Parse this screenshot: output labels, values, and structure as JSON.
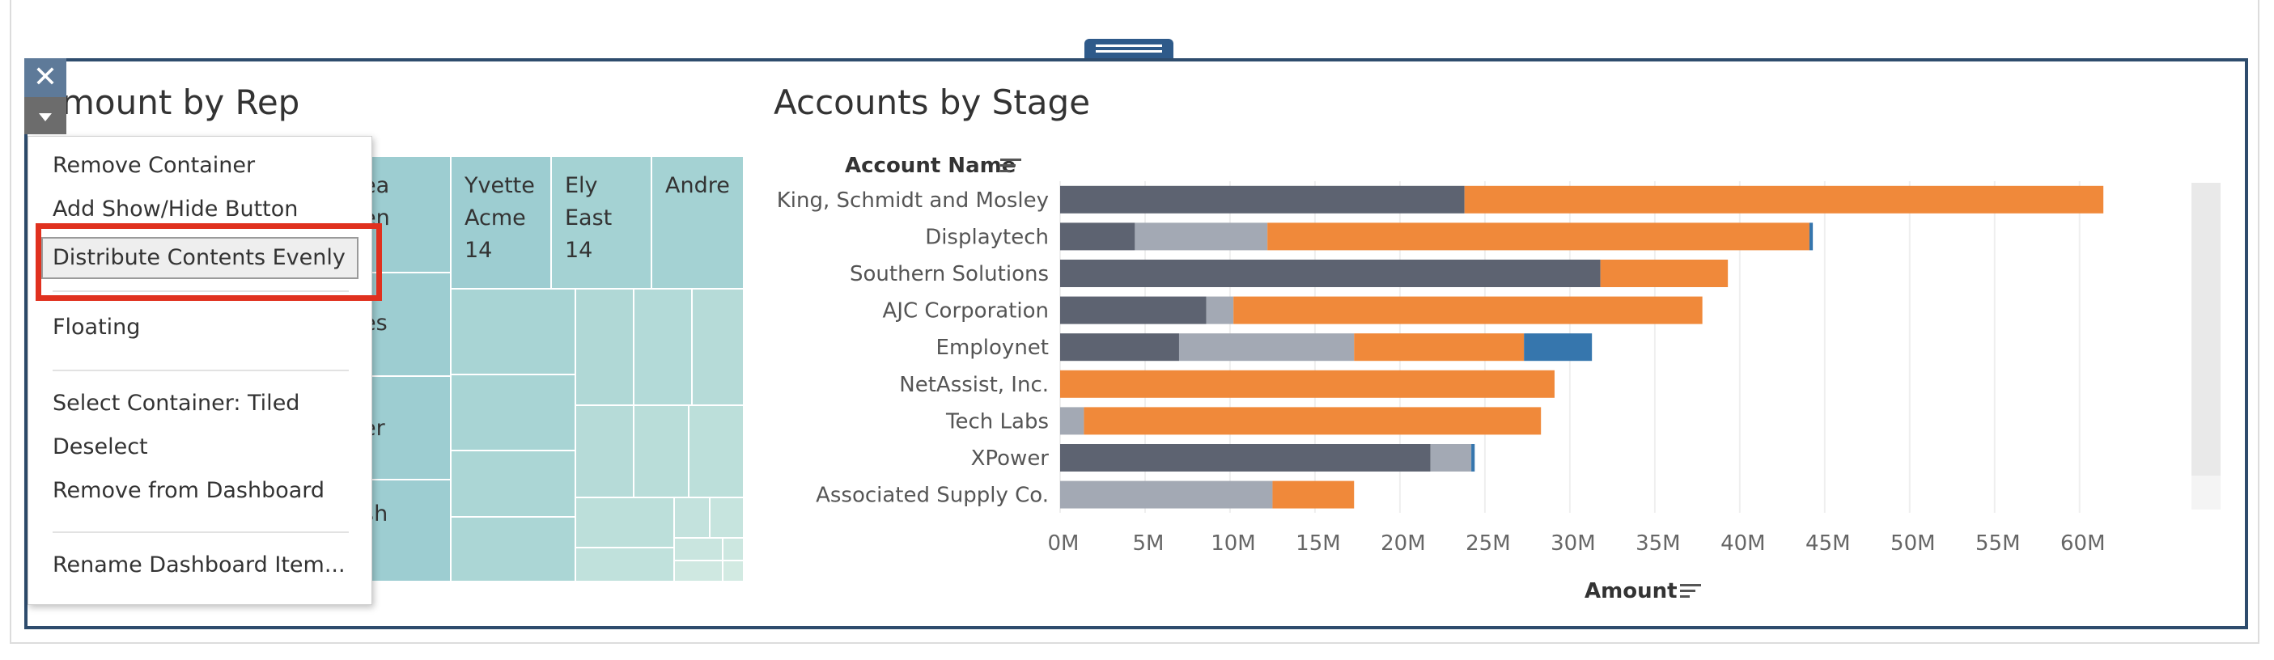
{
  "treemap": {
    "title": "mount by Rep",
    "cells": [
      {
        "label": "ea\nen",
        "color": "#9dcdd1"
      },
      {
        "label": "Yvette\nAcme\n14",
        "color": "#9dcdd1"
      },
      {
        "label": "Ely\nEast\n14",
        "color": "#a4d2d3"
      },
      {
        "label": "Andre",
        "color": "#a4d2d3"
      },
      {
        "label": "es",
        "color": "#9dcdd1"
      },
      {
        "label": "er",
        "color": "#9dcdd1"
      },
      {
        "label": "sh",
        "color": "#9dcdd1"
      }
    ]
  },
  "context_menu": {
    "items": [
      {
        "label": "Remove Container",
        "type": "item"
      },
      {
        "label": "Add Show/Hide Button",
        "type": "item"
      },
      {
        "label": "Distribute Contents Evenly",
        "type": "highlighted"
      },
      {
        "label": "Floating",
        "type": "item"
      },
      {
        "label": "Select Container: Tiled",
        "type": "item"
      },
      {
        "label": "Deselect",
        "type": "item"
      },
      {
        "label": "Remove from Dashboard",
        "type": "item"
      },
      {
        "label": "Rename Dashboard Item...",
        "type": "item"
      }
    ],
    "highlight_color": "#e0311f"
  },
  "buttons": {
    "close_glyph": "✕",
    "close_icon": "close-icon",
    "menu_icon": "caret-down-icon"
  },
  "chart_data": {
    "type": "bar",
    "stacked": true,
    "orientation": "horizontal",
    "title": "Accounts by Stage",
    "ylabel": "Account Name",
    "xlabel": "Amount",
    "categories": [
      "King, Schmidt and Mosley",
      "Displaytech",
      "Southern Solutions",
      "AJC Corporation",
      "Employnet",
      "NetAssist, Inc.",
      "Tech Labs",
      "XPower",
      "Associated Supply Co."
    ],
    "series": [
      {
        "color": "#5d6371",
        "values": [
          23.8,
          4.4,
          31.8,
          8.6,
          7.0,
          0,
          0,
          21.8,
          0
        ]
      },
      {
        "color": "#a3a9b4",
        "values": [
          0,
          7.8,
          0,
          1.6,
          10.3,
          0,
          1.4,
          2.4,
          12.5
        ]
      },
      {
        "color": "#f0893a",
        "values": [
          37.6,
          31.9,
          7.5,
          27.6,
          10.0,
          29.1,
          26.9,
          0,
          4.8
        ]
      },
      {
        "color": "#3676ad",
        "values": [
          0,
          0.2,
          0,
          0,
          4.0,
          0,
          0,
          0.2,
          0
        ]
      }
    ],
    "xlim": [
      0,
      62
    ],
    "xticks": [
      0,
      5,
      10,
      15,
      20,
      25,
      30,
      35,
      40,
      45,
      50,
      55,
      60
    ],
    "xtick_labels": [
      "0M",
      "5M",
      "10M",
      "15M",
      "20M",
      "25M",
      "30M",
      "35M",
      "40M",
      "45M",
      "50M",
      "55M",
      "60M"
    ],
    "grid": true,
    "legend": "none"
  }
}
